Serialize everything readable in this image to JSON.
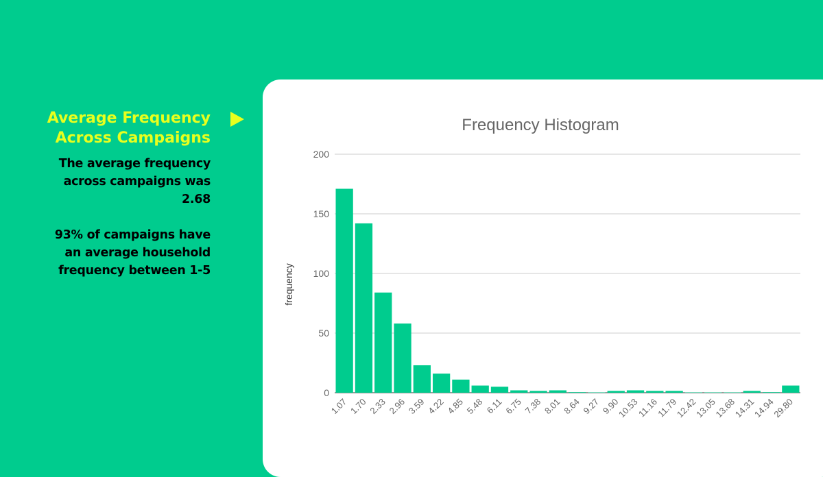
{
  "left_panel": {
    "title_line1": "Average Frequency",
    "title_line2": "Across Campaigns",
    "paragraph1": [
      "The average frequency",
      "across campaigns was",
      "2.68"
    ],
    "paragraph2": [
      "93% of campaigns have",
      "an average household",
      "frequency between 1-5"
    ]
  },
  "colors": {
    "background": "#00cc8e",
    "accent": "#e8ff1e",
    "bar": "#00cc8e"
  },
  "chart_data": {
    "type": "bar",
    "title": "Frequency Histogram",
    "xlabel": "",
    "ylabel": "frequency",
    "ylim": [
      0,
      200
    ],
    "yticks": [
      0,
      50,
      100,
      150,
      200
    ],
    "grid": true,
    "categories": [
      "1.07",
      "1.70",
      "2.33",
      "2.96",
      "3.59",
      "4.22",
      "4.85",
      "5.48",
      "6.11",
      "6.75",
      "7.38",
      "8.01",
      "8.64",
      "9.27",
      "9.90",
      "10.53",
      "11.16",
      "11.79",
      "12.42",
      "13.05",
      "13.68",
      "14.31",
      "14.94",
      "29.80"
    ],
    "values": [
      171,
      142,
      84,
      58,
      23,
      16,
      11,
      6,
      5,
      2,
      1.5,
      2,
      0.5,
      0.3,
      1.5,
      2,
      1.5,
      1.5,
      0.3,
      0.3,
      0.3,
      1.5,
      0.5,
      6
    ]
  }
}
